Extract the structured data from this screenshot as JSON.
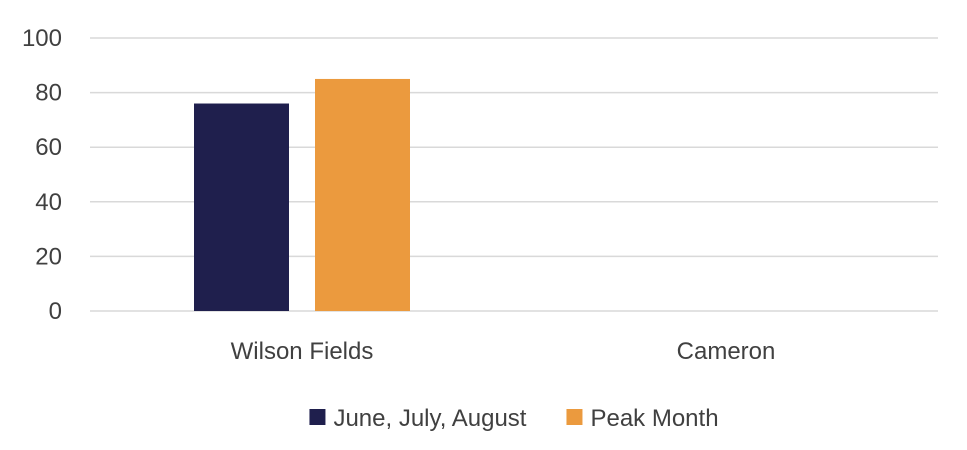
{
  "chart_data": {
    "type": "bar",
    "title": "",
    "xlabel": "",
    "ylabel": "",
    "categories": [
      "Wilson Fields",
      "Cameron"
    ],
    "series": [
      {
        "name": "June, July, August",
        "values": [
          76,
          null
        ],
        "color": "#1f1f4d"
      },
      {
        "name": "Peak Month",
        "values": [
          85,
          null
        ],
        "color": "#eb9a3e"
      }
    ],
    "ylim": [
      0,
      100
    ],
    "yticks": [
      "0",
      "20",
      "40",
      "60",
      "80",
      "100"
    ],
    "grid": true,
    "legend_position": "bottom"
  }
}
